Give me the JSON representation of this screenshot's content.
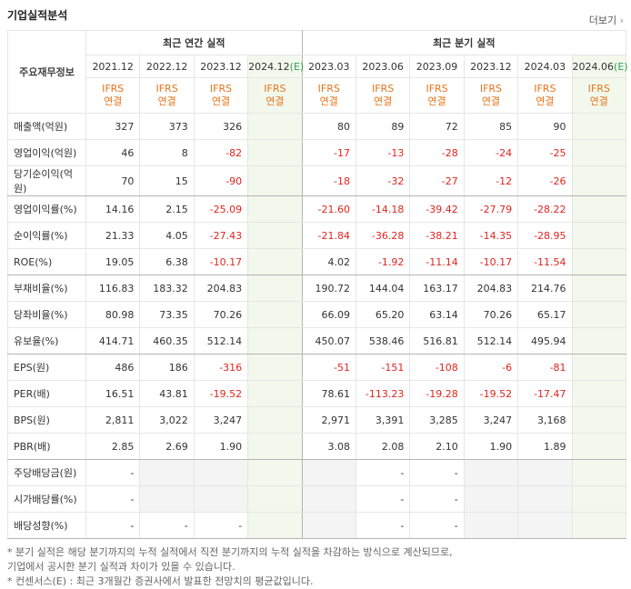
{
  "header": {
    "title": "기업실적분석",
    "more_link": "더보기"
  },
  "table": {
    "corner_label": "주요재무정보",
    "column_groups": [
      {
        "label": "최근 연간 실적",
        "span": 4
      },
      {
        "label": "최근 분기 실적",
        "span": 6
      }
    ],
    "columns": [
      {
        "period": "2021.12",
        "basis": [
          "IFRS",
          "연결"
        ]
      },
      {
        "period": "2022.12",
        "basis": [
          "IFRS",
          "연결"
        ]
      },
      {
        "period": "2023.12",
        "basis": [
          "IFRS",
          "연결"
        ]
      },
      {
        "period": "2024.12",
        "estimate": "(E)",
        "basis": [
          "IFRS",
          "연결"
        ]
      },
      {
        "period": "2023.03",
        "basis": [
          "IFRS",
          "연결"
        ]
      },
      {
        "period": "2023.06",
        "basis": [
          "IFRS",
          "연결"
        ]
      },
      {
        "period": "2023.09",
        "basis": [
          "IFRS",
          "연결"
        ]
      },
      {
        "period": "2023.12",
        "basis": [
          "IFRS",
          "연결"
        ]
      },
      {
        "period": "2024.03",
        "basis": [
          "IFRS",
          "연결"
        ]
      },
      {
        "period": "2024.06",
        "estimate": "(E)",
        "basis": [
          "IFRS",
          "연결"
        ]
      }
    ],
    "row_groups": [
      [
        {
          "label": "매출액(억원)",
          "cells": [
            "327",
            "373",
            "326",
            null,
            "80",
            "89",
            "72",
            "85",
            "90",
            null
          ]
        },
        {
          "label": "영업이익(억원)",
          "cells": [
            "46",
            "8",
            "-82",
            null,
            "-17",
            "-13",
            "-28",
            "-24",
            "-25",
            null
          ]
        },
        {
          "label": "당기순이익(억원)",
          "cells": [
            "70",
            "15",
            "-90",
            null,
            "-18",
            "-32",
            "-27",
            "-12",
            "-26",
            null
          ]
        }
      ],
      [
        {
          "label": "영업이익률(%)",
          "cells": [
            "14.16",
            "2.15",
            "-25.09",
            null,
            "-21.60",
            "-14.18",
            "-39.42",
            "-27.79",
            "-28.22",
            null
          ]
        },
        {
          "label": "순이익률(%)",
          "cells": [
            "21.33",
            "4.05",
            "-27.43",
            null,
            "-21.84",
            "-36.28",
            "-38.21",
            "-14.35",
            "-28.95",
            null
          ]
        },
        {
          "label": "ROE(%)",
          "cells": [
            "19.05",
            "6.38",
            "-10.17",
            null,
            "4.02",
            "-1.92",
            "-11.14",
            "-10.17",
            "-11.54",
            null
          ]
        }
      ],
      [
        {
          "label": "부채비율(%)",
          "cells": [
            "116.83",
            "183.32",
            "204.83",
            null,
            "190.72",
            "144.04",
            "163.17",
            "204.83",
            "214.76",
            null
          ]
        },
        {
          "label": "당좌비율(%)",
          "cells": [
            "80.98",
            "73.35",
            "70.26",
            null,
            "66.09",
            "65.20",
            "63.14",
            "70.26",
            "65.17",
            null
          ]
        },
        {
          "label": "유보율(%)",
          "cells": [
            "414.71",
            "460.35",
            "512.14",
            null,
            "450.07",
            "538.46",
            "516.81",
            "512.14",
            "495.94",
            null
          ]
        }
      ],
      [
        {
          "label": "EPS(원)",
          "cells": [
            "486",
            "186",
            "-316",
            null,
            "-51",
            "-151",
            "-108",
            "-6",
            "-81",
            null
          ]
        },
        {
          "label": "PER(배)",
          "cells": [
            "16.51",
            "43.81",
            "-19.52",
            null,
            "78.61",
            "-113.23",
            "-19.28",
            "-19.52",
            "-17.47",
            null
          ]
        },
        {
          "label": "BPS(원)",
          "cells": [
            "2,811",
            "3,022",
            "3,247",
            null,
            "2,971",
            "3,391",
            "3,285",
            "3,247",
            "3,168",
            null
          ]
        },
        {
          "label": "PBR(배)",
          "cells": [
            "2.85",
            "2.69",
            "1.90",
            null,
            "3.08",
            "2.08",
            "2.10",
            "1.90",
            "1.89",
            null
          ]
        }
      ],
      [
        {
          "label": "주당배당금(원)",
          "cells": [
            "-",
            null,
            null,
            null,
            null,
            "-",
            "-",
            null,
            null,
            null
          ]
        },
        {
          "label": "시가배당률(%)",
          "cells": [
            "-",
            null,
            null,
            null,
            null,
            "-",
            "-",
            null,
            null,
            null
          ]
        },
        {
          "label": "배당성향(%)",
          "cells": [
            "-",
            "-",
            "-",
            null,
            null,
            "-",
            "-",
            null,
            null,
            null
          ]
        }
      ]
    ]
  },
  "notes": [
    "* 분기 실적은 해당 분기까지의 누적 실적에서 직전 분기까지의 누적 실적을 차감하는 방식으로 계산되므로,",
    "   기업에서 공시한 분기 실적과 차이가 있을 수 있습니다.",
    "* 컨센서스(E) : 최근 3개월간 증권사에서 발표한 전망치의 평균값입니다."
  ]
}
